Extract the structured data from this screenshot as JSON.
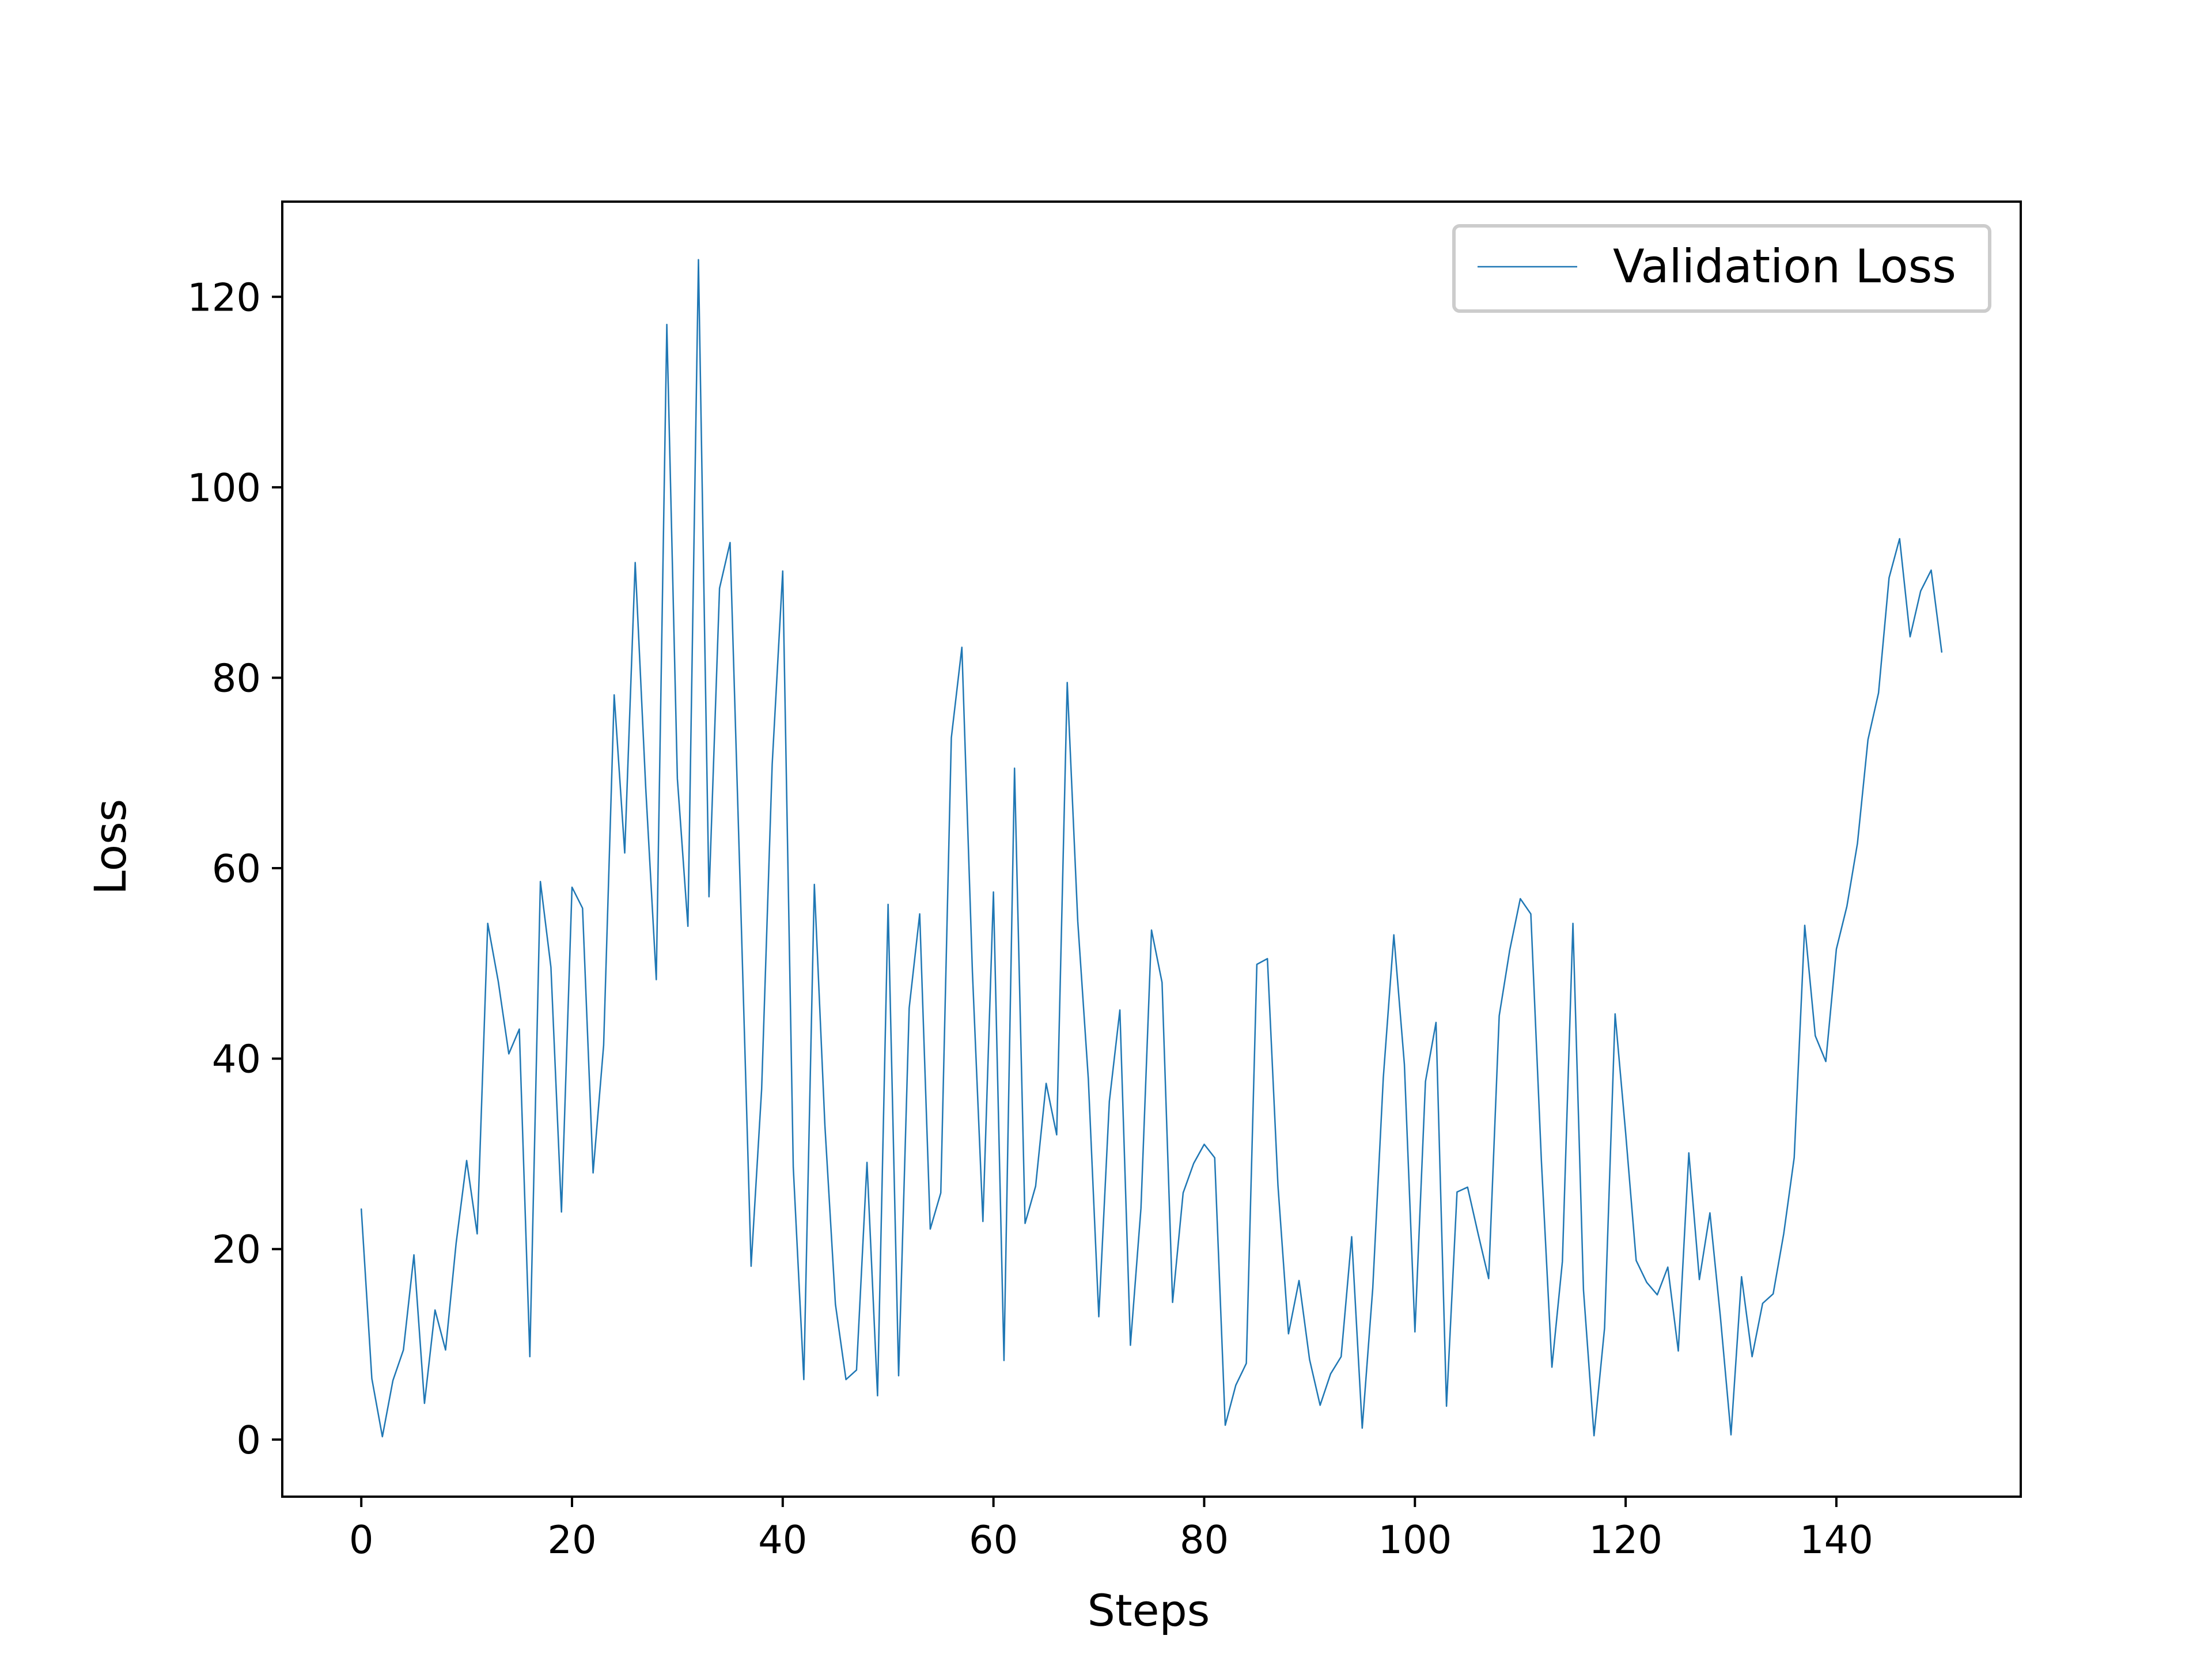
{
  "chart_data": {
    "type": "line",
    "title": "",
    "xlabel": "Steps",
    "ylabel": "Loss",
    "xlim": [
      -7.5,
      157.5
    ],
    "ylim": [
      -6,
      130
    ],
    "xticks": [
      0,
      20,
      40,
      60,
      80,
      100,
      120,
      140
    ],
    "yticks": [
      0,
      20,
      40,
      60,
      80,
      100,
      120
    ],
    "grid": false,
    "legend": {
      "position": "top-right"
    },
    "colors": {
      "series": "#1f77b4",
      "axes": "#000000",
      "legend_border": "#cccccc"
    },
    "x": [
      0,
      1,
      2,
      3,
      4,
      5,
      6,
      7,
      8,
      9,
      10,
      11,
      12,
      13,
      14,
      15,
      16,
      17,
      18,
      19,
      20,
      21,
      22,
      23,
      24,
      25,
      26,
      27,
      28,
      29,
      30,
      31,
      32,
      33,
      34,
      35,
      36,
      37,
      38,
      39,
      40,
      41,
      42,
      43,
      44,
      45,
      46,
      47,
      48,
      49,
      50,
      51,
      52,
      53,
      54,
      55,
      56,
      57,
      58,
      59,
      60,
      61,
      62,
      63,
      64,
      65,
      66,
      67,
      68,
      69,
      70,
      71,
      72,
      73,
      74,
      75,
      76,
      77,
      78,
      79,
      80,
      81,
      82,
      83,
      84,
      85,
      86,
      87,
      88,
      89,
      90,
      91,
      92,
      93,
      94,
      95,
      96,
      97,
      98,
      99,
      100,
      101,
      102,
      103,
      104,
      105,
      106,
      107,
      108,
      109,
      110,
      111,
      112,
      113,
      114,
      115,
      116,
      117,
      118,
      119,
      120,
      121,
      122,
      123,
      124,
      125,
      126,
      127,
      128,
      129,
      130,
      131,
      132,
      133,
      134,
      135,
      136,
      137,
      138,
      139,
      140,
      141,
      142,
      143,
      144,
      145,
      146,
      147,
      148,
      149,
      150
    ],
    "series": [
      {
        "name": "Validation Loss",
        "values": [
          24.2,
          6.4,
          0.3,
          6.2,
          9.4,
          19.4,
          3.8,
          13.6,
          9.4,
          20.6,
          29.3,
          21.6,
          54.2,
          48.1,
          40.5,
          43.1,
          8.7,
          58.6,
          49.6,
          23.9,
          58.0,
          55.8,
          28.0,
          41.4,
          78.2,
          61.6,
          92.1,
          68.4,
          48.3,
          117.1,
          69.4,
          53.9,
          123.9,
          57.0,
          89.4,
          94.2,
          56.6,
          18.2,
          36.8,
          70.9,
          91.2,
          28.6,
          6.3,
          58.3,
          33.0,
          14.2,
          6.3,
          7.3,
          29.1,
          4.6,
          56.2,
          6.7,
          45.3,
          55.2,
          22.1,
          25.9,
          73.7,
          83.2,
          49.1,
          22.9,
          57.5,
          8.3,
          70.5,
          22.7,
          26.6,
          37.4,
          32.0,
          79.5,
          54.4,
          37.9,
          12.9,
          35.5,
          45.1,
          9.9,
          24.3,
          53.5,
          48.0,
          14.4,
          25.9,
          29.0,
          31.0,
          29.6,
          1.5,
          5.7,
          8.0,
          49.9,
          50.5,
          26.7,
          11.1,
          16.7,
          8.4,
          3.6,
          6.9,
          8.7,
          21.3,
          1.2,
          15.9,
          38.0,
          53.0,
          39.4,
          11.3,
          37.6,
          43.8,
          3.5,
          26.0,
          26.5,
          21.6,
          16.9,
          44.5,
          51.4,
          56.8,
          55.2,
          29.3,
          7.6,
          18.7,
          54.2,
          15.7,
          0.4,
          11.7,
          44.7,
          32.2,
          18.8,
          16.5,
          15.2,
          18.1,
          9.3,
          30.1,
          16.8,
          23.8,
          12.8,
          0.5,
          17.1,
          8.7,
          14.3,
          15.3,
          21.6,
          29.6,
          54.0,
          42.4,
          39.7,
          51.5,
          56.0,
          62.6,
          73.5,
          78.4,
          90.5,
          94.6,
          84.3,
          89.1,
          91.3,
          82.7
        ]
      }
    ]
  }
}
